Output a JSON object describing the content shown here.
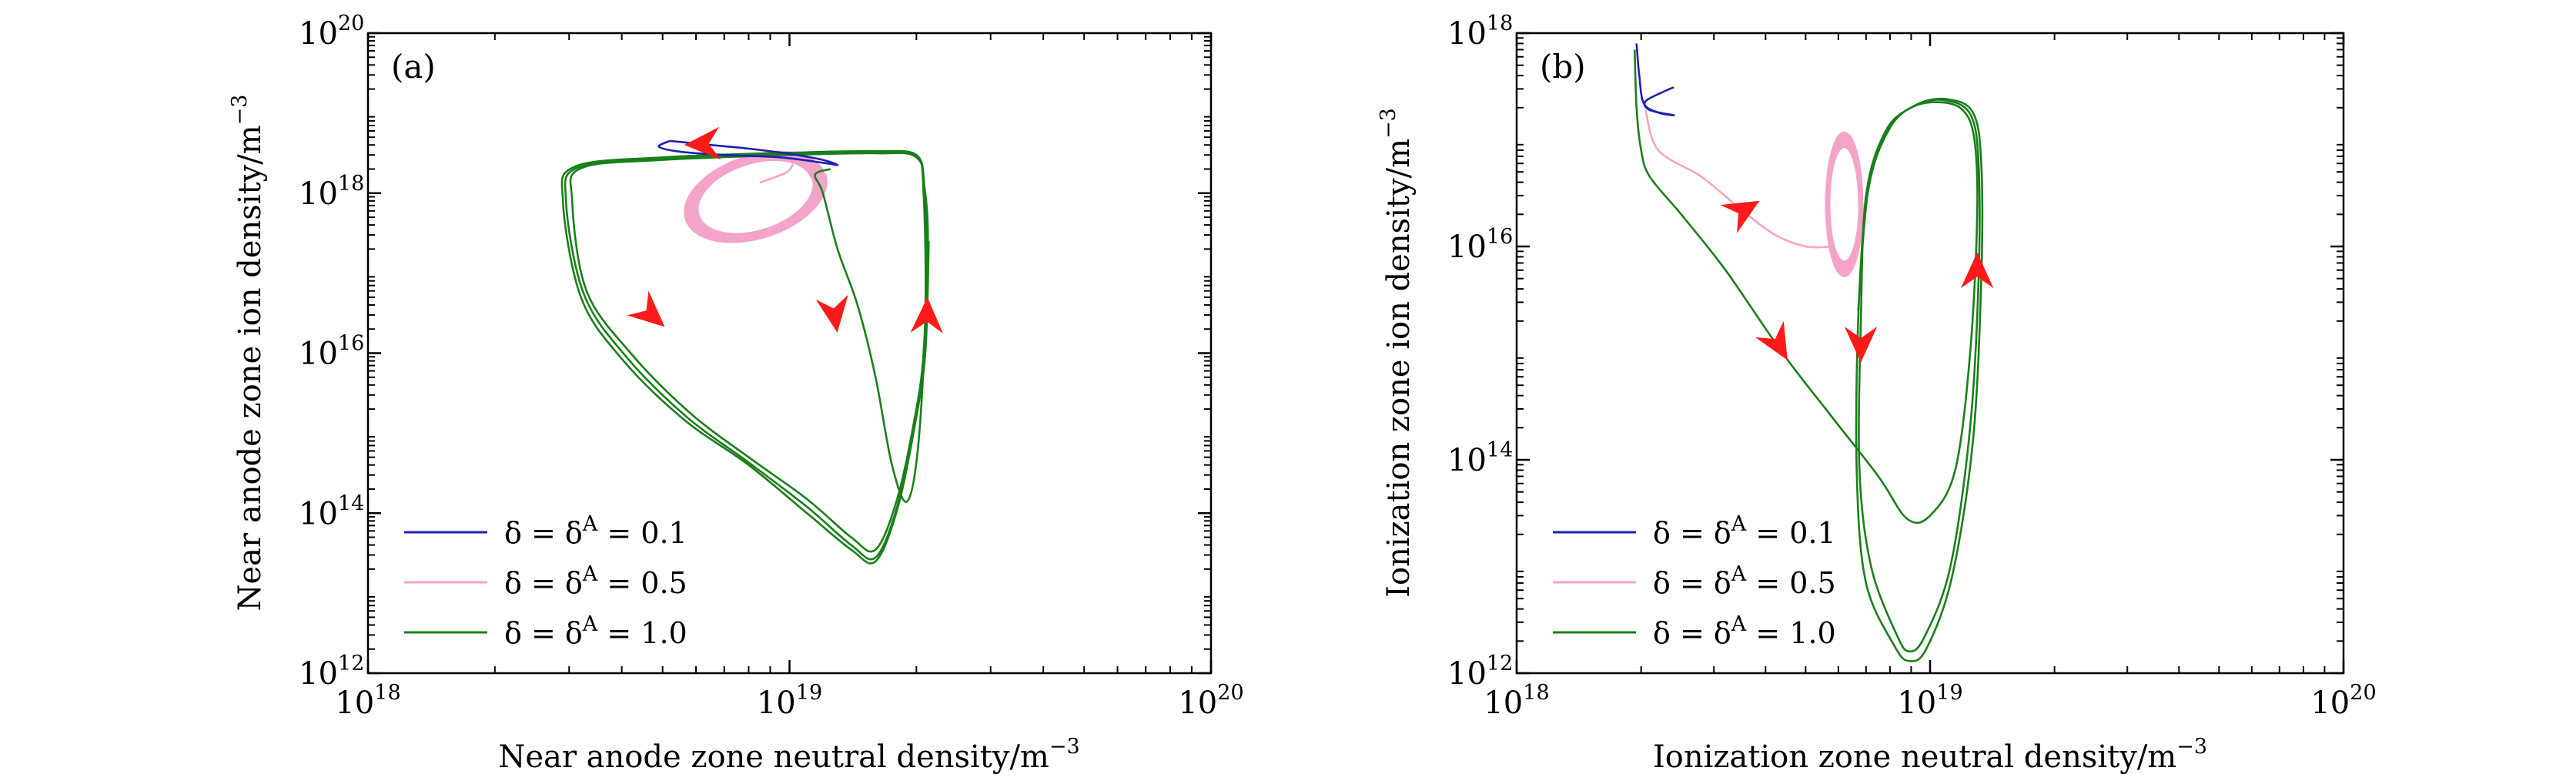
{
  "colors": {
    "blue": "#1f1fb4",
    "pink": "#f4a3c9",
    "green": "#1a7f1a",
    "arrow": "#ff1a1a",
    "axis": "#000000"
  },
  "chart_data": [
    {
      "type": "line",
      "panel_label": "(a)",
      "xlabel": "Near anode zone neutral density/m",
      "ylabel": "Near anode zone ion density/m",
      "unit_exponent": "−3",
      "xscale": "log",
      "yscale": "log",
      "xlim": [
        1e+18,
        1e+20
      ],
      "ylim": [
        1000000000000.0,
        1e+20
      ],
      "x_ticks": [
        {
          "value": 1e+18,
          "base": "10",
          "exp": "18"
        },
        {
          "value": 1e+19,
          "base": "10",
          "exp": "19"
        },
        {
          "value": 1e+20,
          "base": "10",
          "exp": "20"
        }
      ],
      "y_ticks": [
        {
          "value": 1000000000000.0,
          "base": "10",
          "exp": "12"
        },
        {
          "value": 100000000000000.0,
          "base": "10",
          "exp": "14"
        },
        {
          "value": 1e+16,
          "base": "10",
          "exp": "16"
        },
        {
          "value": 1e+18,
          "base": "10",
          "exp": "18"
        },
        {
          "value": 1e+20,
          "base": "10",
          "exp": "20"
        }
      ],
      "legend_position": "bottom-left",
      "series": [
        {
          "name": "δ = δA = 0.1",
          "label_main": "δ = δ",
          "label_sup": "A",
          "label_tail": " = 0.1",
          "color": "blue",
          "curves": [
            [
              [
                5.2e+18,
                4.5e+18
              ],
              [
                6.5e+18,
                4e+18
              ],
              [
                8e+18,
                3.6e+18
              ],
              [
                1e+19,
                3.1e+18
              ],
              [
                1.2e+19,
                2.6e+18
              ],
              [
                1.3e+19,
                2.25e+18
              ],
              [
                1.2e+19,
                2.4e+18
              ],
              [
                9.5e+18,
                2.8e+18
              ],
              [
                7e+18,
                3e+18
              ],
              [
                5.5e+18,
                3.3e+18
              ],
              [
                4.9e+18,
                3.8e+18
              ],
              [
                5.2e+18,
                4.5e+18
              ]
            ]
          ]
        },
        {
          "name": "δ = δA = 0.5",
          "label_main": "δ = δ",
          "label_sup": "A",
          "label_tail": " = 0.5",
          "color": "pink",
          "orbit": {
            "cx": 8.3e+18,
            "cy": 9e+17,
            "rx_dec": 0.175,
            "ry_dec": 0.52,
            "rotation_deg": -18,
            "loops": 14,
            "spread": 0.2
          },
          "curves": [
            [
              [
                1.02e+19,
                2.3e+18
              ],
              [
                9.8e+18,
                1.8e+18
              ],
              [
                8.5e+18,
                1.35e+18
              ]
            ]
          ]
        },
        {
          "name": "δ = δA = 1.0",
          "label_main": "δ = δ",
          "label_sup": "A",
          "label_tail": " = 1.0",
          "color": "green",
          "curves": [
            [
              [
                1.25e+19,
                2e+18
              ],
              [
                1.15e+19,
                1.7e+18
              ],
              [
                1.2e+19,
                1e+18
              ],
              [
                1.3e+19,
                2e+17
              ],
              [
                1.45e+19,
                4e+16
              ],
              [
                1.6e+19,
                5000000000000000.0
              ],
              [
                1.75e+19,
                400000000000000.0
              ],
              [
                1.9e+19,
                140000000000000.0
              ],
              [
                2.02e+19,
                700000000000000.0
              ],
              [
                2.1e+19,
                3e+16
              ],
              [
                2.08e+19,
                1e+18
              ],
              [
                2e+19,
                2.8e+18
              ],
              [
                1.6e+19,
                3.15e+18
              ],
              [
                1e+19,
                3e+18
              ],
              [
                5e+18,
                2.6e+18
              ],
              [
                3.2e+18,
                2.05e+18
              ],
              [
                3.05e+18,
                8e+17
              ],
              [
                3.3e+18,
                6e+16
              ],
              [
                4.2e+18,
                1e+16
              ],
              [
                5.8e+18,
                1800000000000000.0
              ],
              [
                8e+18,
                500000000000000.0
              ],
              [
                1.1e+19,
                150000000000000.0
              ],
              [
                1.4e+19,
                50000000000000.0
              ],
              [
                1.6e+19,
                35000000000000.0
              ],
              [
                1.8e+19,
                150000000000000.0
              ],
              [
                1.98e+19,
                1500000000000000.0
              ],
              [
                2.08e+19,
                1e+16
              ],
              [
                2.12e+19,
                2.5e+17
              ],
              [
                2.08e+19,
                1.2e+18
              ],
              [
                2e+19,
                2.9e+18
              ],
              [
                1.6e+19,
                3.25e+18
              ],
              [
                1e+19,
                3.1e+18
              ],
              [
                5e+18,
                2.7e+18
              ],
              [
                3.15e+18,
                2.1e+18
              ],
              [
                2.95e+18,
                8e+17
              ],
              [
                3.25e+18,
                5.5e+16
              ],
              [
                4.1e+18,
                9000000000000000.0
              ],
              [
                5.7e+18,
                1600000000000000.0
              ],
              [
                8e+18,
                430000000000000.0
              ],
              [
                1.1e+19,
                120000000000000.0
              ],
              [
                1.4e+19,
                40000000000000.0
              ],
              [
                1.6e+19,
                28000000000000.0
              ],
              [
                1.8e+19,
                120000000000000.0
              ],
              [
                1.98e+19,
                1300000000000000.0
              ],
              [
                2.09e+19,
                1e+16
              ],
              [
                2.13e+19,
                2.5e+17
              ],
              [
                2.09e+19,
                1.2e+18
              ],
              [
                2e+19,
                3e+18
              ],
              [
                1.6e+19,
                3.35e+18
              ],
              [
                1e+19,
                3.2e+18
              ],
              [
                5e+18,
                2.8e+18
              ],
              [
                3.1e+18,
                2.15e+18
              ],
              [
                2.9e+18,
                8e+17
              ],
              [
                3.2e+18,
                5e+16
              ],
              [
                4e+18,
                8500000000000000.0
              ],
              [
                5.6e+18,
                1500000000000000.0
              ],
              [
                8e+18,
                400000000000000.0
              ],
              [
                1.1e+19,
                100000000000000.0
              ],
              [
                1.4e+19,
                35000000000000.0
              ],
              [
                1.6e+19,
                25000000000000.0
              ],
              [
                1.8e+19,
                110000000000000.0
              ],
              [
                1.98e+19,
                1200000000000000.0
              ],
              [
                2.1e+19,
                1e+16
              ],
              [
                2.14e+19,
                2.5e+17
              ]
            ]
          ]
        }
      ],
      "arrows": [
        {
          "x": 6.2e+18,
          "y": 4.1e+18,
          "dir": [
            -1,
            0.05
          ],
          "color": "arrow"
        },
        {
          "x": 4.7e+18,
          "y": 3e+16,
          "dir": [
            0.75,
            0.66
          ],
          "color": "arrow"
        },
        {
          "x": 1.28e+19,
          "y": 3e+16,
          "dir": [
            0.15,
            1
          ],
          "color": "arrow"
        },
        {
          "x": 2.12e+19,
          "y": 3e+16,
          "dir": [
            0.02,
            -1
          ],
          "color": "arrow"
        }
      ]
    },
    {
      "type": "line",
      "panel_label": "(b)",
      "xlabel": "Ionization zone neutral density/m",
      "ylabel": "Ionization zone ion density/m",
      "unit_exponent": "−3",
      "xscale": "log",
      "yscale": "log",
      "xlim": [
        1e+18,
        1e+20
      ],
      "ylim": [
        1000000000000.0,
        1e+18
      ],
      "x_ticks": [
        {
          "value": 1e+18,
          "base": "10",
          "exp": "18"
        },
        {
          "value": 1e+19,
          "base": "10",
          "exp": "19"
        },
        {
          "value": 1e+20,
          "base": "10",
          "exp": "20"
        }
      ],
      "y_ticks": [
        {
          "value": 1000000000000.0,
          "base": "10",
          "exp": "12"
        },
        {
          "value": 100000000000000.0,
          "base": "10",
          "exp": "14"
        },
        {
          "value": 1e+16,
          "base": "10",
          "exp": "16"
        },
        {
          "value": 1e+18,
          "base": "10",
          "exp": "18"
        }
      ],
      "legend_position": "bottom-left",
      "series": [
        {
          "name": "δ = δA = 0.1",
          "label_main": "δ = δ",
          "label_sup": "A",
          "label_tail": " = 0.1",
          "color": "blue",
          "curves": [
            [
              [
                1.95e+18,
                8e+17
              ],
              [
                1.98e+18,
                4e+17
              ],
              [
                2.03e+18,
                2.2e+17
              ],
              [
                2.2e+18,
                1.8e+17
              ],
              [
                2.4e+18,
                1.7e+17
              ],
              [
                2.1e+18,
                1.9e+17
              ],
              [
                2.05e+18,
                2.3e+17
              ],
              [
                2.3e+18,
                2.9e+17
              ],
              [
                2.4e+18,
                3.1e+17
              ]
            ]
          ]
        },
        {
          "name": "δ = δA = 0.5",
          "label_main": "δ = δ",
          "label_sup": "A",
          "label_tail": " = 0.5",
          "color": "pink",
          "orbit": {
            "cx": 6.2e+18,
            "cy": 2.5e+16,
            "rx_dec": 0.045,
            "ry_dec": 0.68,
            "rotation_deg": 0,
            "loops": 14,
            "spread": 0.22
          },
          "curves": [
            [
              [
                2.05e+18,
                1.9e+17
              ],
              [
                2.2e+18,
                8e+16
              ],
              [
                2.8e+18,
                4.5e+16
              ],
              [
                3.5e+18,
                2.2e+16
              ],
              [
                4.2e+18,
                1.3e+16
              ],
              [
                5e+18,
                1e+16
              ],
              [
                5.8e+18,
                1e+16
              ]
            ]
          ]
        },
        {
          "name": "δ = δA = 1.0",
          "label_main": "δ = δ",
          "label_sup": "A",
          "label_tail": " = 1.0",
          "color": "green",
          "curves": [
            [
              [
                1.93e+18,
                7e+17
              ],
              [
                1.95e+18,
                2e+17
              ],
              [
                2e+18,
                8e+16
              ],
              [
                2.1e+18,
                4.5e+16
              ],
              [
                2.5e+18,
                2e+16
              ],
              [
                3.2e+18,
                6000000000000000.0
              ],
              [
                4.4e+18,
                1000000000000000.0
              ],
              [
                5.8e+18,
                250000000000000.0
              ],
              [
                7.5e+18,
                70000000000000.0
              ],
              [
                8.8e+18,
                28000000000000.0
              ],
              [
                1e+19,
                30000000000000.0
              ],
              [
                1.15e+19,
                80000000000000.0
              ],
              [
                1.25e+19,
                1000000000000000.0
              ],
              [
                1.3e+19,
                2e+16
              ],
              [
                1.28e+19,
                1e+17
              ],
              [
                1.2e+19,
                1.9e+17
              ],
              [
                1.05e+19,
                2.25e+17
              ],
              [
                9e+18,
                2e+17
              ],
              [
                7.8e+18,
                1.2e+17
              ],
              [
                7e+18,
                3e+16
              ],
              [
                6.8e+18,
                2000000000000000.0
              ],
              [
                6.75e+18,
                80000000000000.0
              ],
              [
                7.2e+18,
                10000000000000.0
              ],
              [
                8.3e+18,
                2300000000000.0
              ],
              [
                8.9e+18,
                1600000000000.0
              ],
              [
                9.7e+18,
                2200000000000.0
              ],
              [
                1.12e+19,
                10000000000000.0
              ],
              [
                1.25e+19,
                200000000000000.0
              ],
              [
                1.31e+19,
                5000000000000000.0
              ],
              [
                1.31e+19,
                6e+16
              ],
              [
                1.25e+19,
                1.75e+17
              ],
              [
                1.08e+19,
                2.35e+17
              ],
              [
                9.2e+18,
                2.1e+17
              ],
              [
                7.9e+18,
                1.25e+17
              ],
              [
                7.05e+18,
                3.2e+16
              ],
              [
                6.7e+18,
                2000000000000000.0
              ],
              [
                6.65e+18,
                70000000000000.0
              ],
              [
                7e+18,
                7000000000000.0
              ],
              [
                8.2e+18,
                1800000000000.0
              ],
              [
                8.9e+18,
                1300000000000.0
              ],
              [
                9.8e+18,
                1700000000000.0
              ],
              [
                1.13e+19,
                8000000000000.0
              ],
              [
                1.27e+19,
                150000000000000.0
              ],
              [
                1.33e+19,
                5000000000000000.0
              ],
              [
                1.33e+19,
                6e+16
              ],
              [
                1.27e+19,
                1.8e+17
              ],
              [
                1.1e+19,
                2.4e+17
              ],
              [
                9.3e+18,
                2.15e+17
              ],
              [
                8e+18,
                1.3e+17
              ],
              [
                7.1e+18,
                3.5e+16
              ],
              [
                6.7e+18,
                2500000000000000.0
              ]
            ]
          ]
        }
      ],
      "arrows": [
        {
          "x": 3.55e+18,
          "y": 2.2e+16,
          "dir": [
            0.85,
            -0.5
          ],
          "color": "arrow"
        },
        {
          "x": 4.3e+18,
          "y": 1200000000000000.0,
          "dir": [
            0.5,
            0.86
          ],
          "color": "arrow"
        },
        {
          "x": 6.8e+18,
          "y": 1200000000000000.0,
          "dir": [
            0,
            1
          ],
          "color": "arrow"
        },
        {
          "x": 1.3e+19,
          "y": 6000000000000000.0,
          "dir": [
            0,
            -1
          ],
          "color": "arrow"
        }
      ]
    }
  ]
}
